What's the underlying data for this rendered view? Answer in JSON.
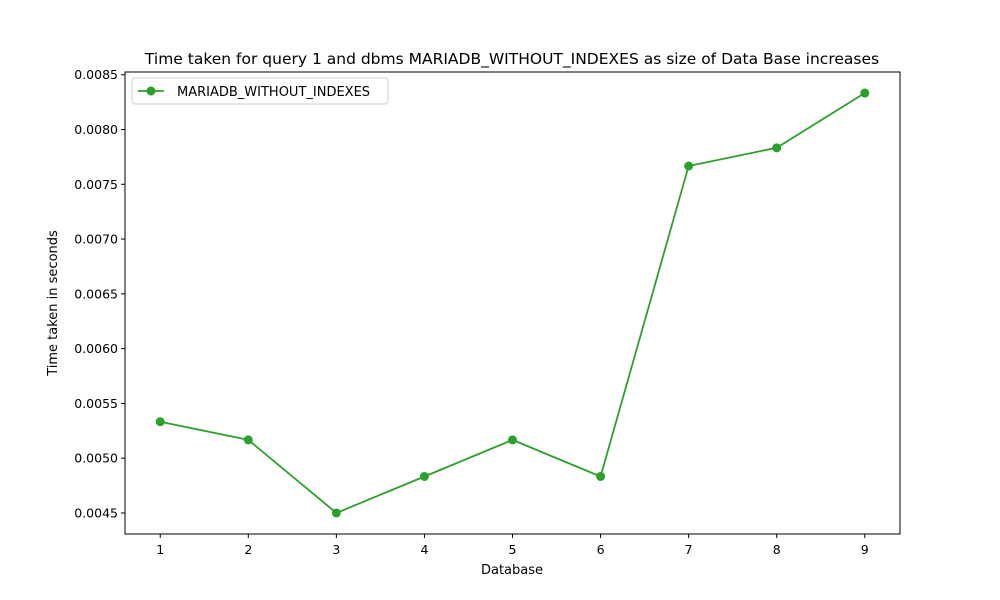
{
  "chart_data": {
    "type": "line",
    "title": "Time taken for query 1 and dbms MARIADB_WITHOUT_INDEXES as size of Data Base increases",
    "xlabel": "Database",
    "ylabel": "Time taken in seconds",
    "x": [
      1,
      2,
      3,
      4,
      5,
      6,
      7,
      8,
      9
    ],
    "series": [
      {
        "name": "MARIADB_WITHOUT_INDEXES",
        "color": "#2ca02c",
        "values": [
          0.005333,
          0.005167,
          0.0045,
          0.004833,
          0.005167,
          0.004833,
          0.007667,
          0.007833,
          0.008333
        ]
      }
    ],
    "xticks": [
      "1",
      "2",
      "3",
      "4",
      "5",
      "6",
      "7",
      "8",
      "9"
    ],
    "yticks": [
      "0.0045",
      "0.0050",
      "0.0055",
      "0.0060",
      "0.0065",
      "0.0070",
      "0.0075",
      "0.0080",
      "0.0085"
    ],
    "ytick_values": [
      0.0045,
      0.005,
      0.0055,
      0.006,
      0.0065,
      0.007,
      0.0075,
      0.008,
      0.0085
    ],
    "xlim": [
      0.6,
      9.4
    ],
    "ylim": [
      0.004308,
      0.008525
    ],
    "grid": false,
    "legend_position": "top-left"
  }
}
